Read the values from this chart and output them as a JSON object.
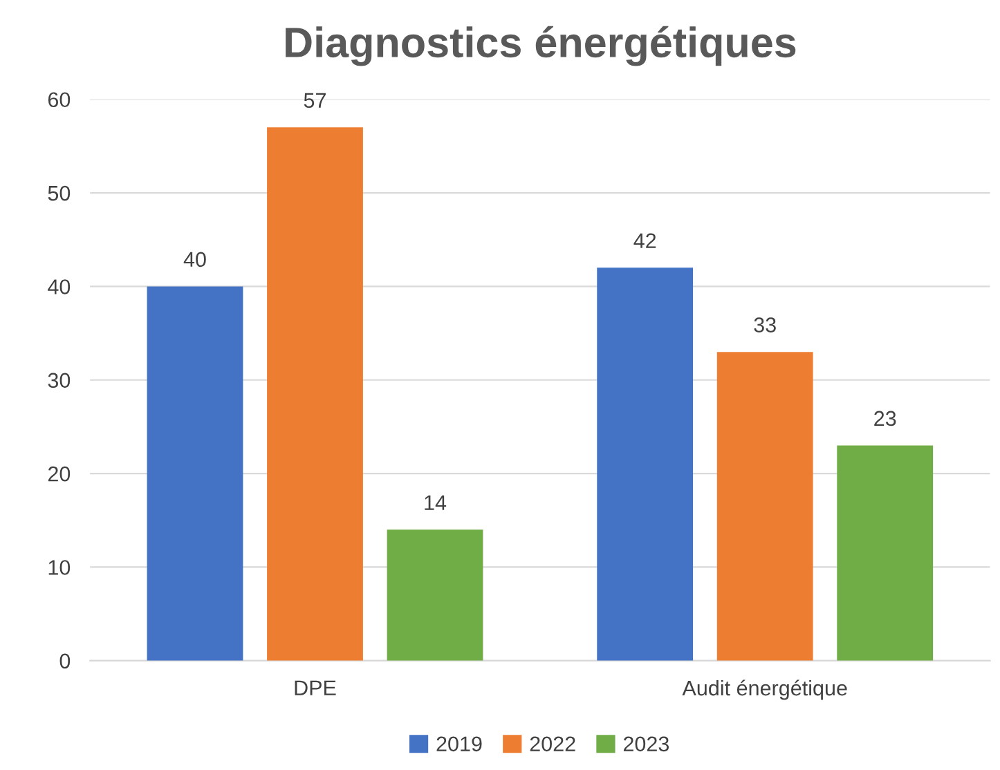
{
  "chart_data": {
    "type": "bar",
    "title": "Diagnostics énergétiques",
    "categories": [
      "DPE",
      "Audit énergétique"
    ],
    "series": [
      {
        "name": "2019",
        "color": "#4472c4",
        "values": [
          40,
          42
        ]
      },
      {
        "name": "2022",
        "color": "#ed7d31",
        "values": [
          57,
          33
        ]
      },
      {
        "name": "2023",
        "color": "#70ad47",
        "values": [
          14,
          23
        ]
      }
    ],
    "ylim": [
      0,
      60
    ],
    "yticks": [
      0,
      10,
      20,
      30,
      40,
      50,
      60
    ],
    "grid": "y",
    "legend": "bottom",
    "data_labels": true
  }
}
